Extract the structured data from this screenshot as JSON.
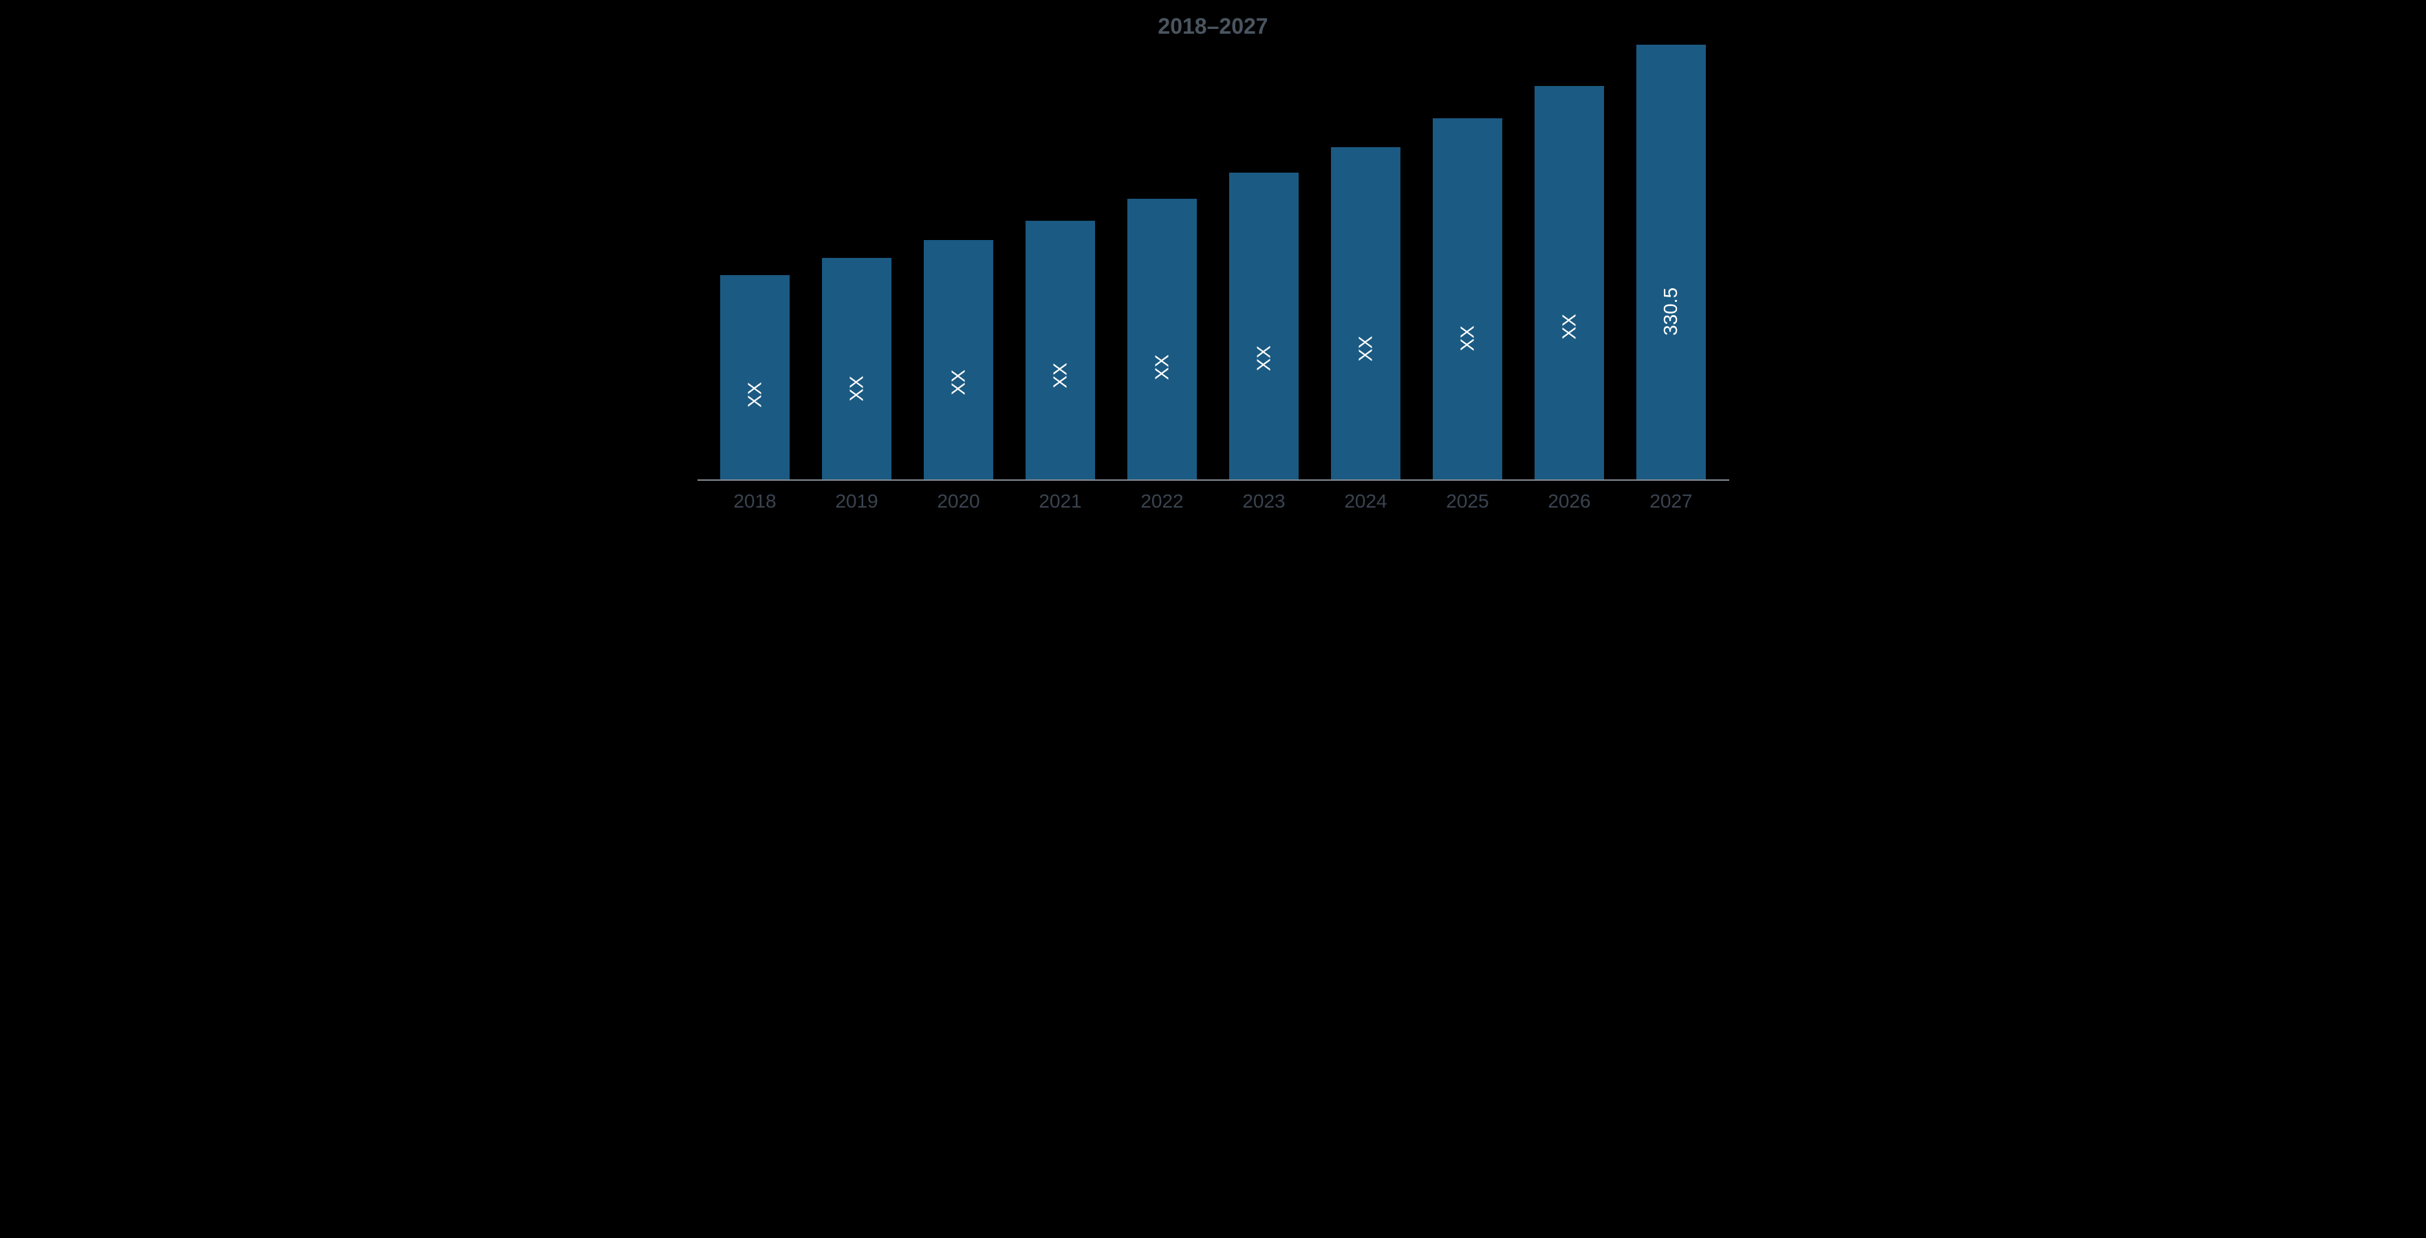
{
  "chart": {
    "type": "bar",
    "title": "2018–2027",
    "title_color": "#4a5560",
    "title_fontsize": 32,
    "background_color": "#000000",
    "bar_color": "#1b5a82",
    "axis_line_color": "#828a92",
    "bar_label_color": "#ffffff",
    "bar_label_fontsize": 28,
    "x_tick_color": "#3a4450",
    "x_tick_fontsize": 28,
    "bar_width_ratio": 0.68,
    "y_max_relative": 100,
    "categories": [
      "2018",
      "2019",
      "2020",
      "2021",
      "2022",
      "2023",
      "2024",
      "2025",
      "2026",
      "2027"
    ],
    "bar_heights_relative": [
      47,
      51,
      55,
      59.5,
      64.5,
      70.5,
      76.5,
      83,
      90.5,
      100
    ],
    "bar_labels": [
      "XX",
      "XX",
      "XX",
      "XX",
      "XX",
      "XX",
      "XX",
      "XX",
      "XX",
      "330.5"
    ]
  }
}
